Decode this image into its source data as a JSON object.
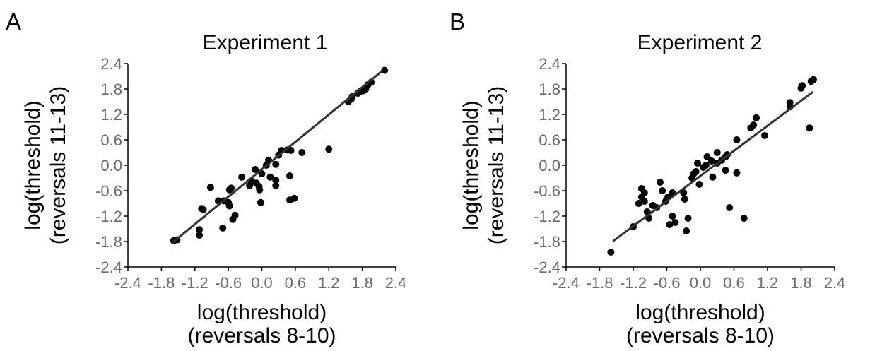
{
  "chart_data": [
    {
      "type": "scatter",
      "panel_letter": "A",
      "title": "Experiment 1",
      "xlabel_lines": [
        "log(threshold)",
        "(reversals 8-10)"
      ],
      "ylabel_lines": [
        "log(threshold)",
        "(reversals 11-13)"
      ],
      "xlim": [
        -2.4,
        2.4
      ],
      "ylim": [
        -2.4,
        2.4
      ],
      "xticks": [
        -2.4,
        -1.8,
        -1.2,
        -0.6,
        0.0,
        0.6,
        1.2,
        1.8,
        2.4
      ],
      "yticks": [
        -2.4,
        -1.8,
        -1.2,
        -0.6,
        0.0,
        0.6,
        1.2,
        1.8,
        2.4
      ],
      "xtick_labels": [
        "-2.4",
        "-1.8",
        "-1.2",
        "-0.6",
        "0.0",
        "0.6",
        "1.2",
        "1.8",
        "2.4"
      ],
      "ytick_labels": [
        "-2.4",
        "-1.8",
        "-1.2",
        "-0.6",
        "0.0",
        "0.6",
        "1.2",
        "1.8",
        "2.4"
      ],
      "grid": false,
      "fit_line": {
        "x": [
          -1.6,
          2.15
        ],
        "y": [
          -1.82,
          2.22
        ]
      },
      "points": [
        [
          -1.58,
          -1.78
        ],
        [
          -1.52,
          -1.76
        ],
        [
          -1.12,
          -1.65
        ],
        [
          -1.12,
          -1.52
        ],
        [
          -1.05,
          -1.05
        ],
        [
          -1.08,
          -1.02
        ],
        [
          -0.92,
          -0.52
        ],
        [
          -0.78,
          -0.84
        ],
        [
          -0.7,
          -1.48
        ],
        [
          -0.68,
          -0.84
        ],
        [
          -0.6,
          -0.88
        ],
        [
          -0.58,
          -0.96
        ],
        [
          -0.52,
          -1.28
        ],
        [
          -0.48,
          -1.18
        ],
        [
          -0.58,
          -0.58
        ],
        [
          -0.55,
          -0.54
        ],
        [
          -0.36,
          -0.28
        ],
        [
          -0.22,
          -0.48
        ],
        [
          -0.18,
          -0.38
        ],
        [
          -0.12,
          -0.1
        ],
        [
          -0.1,
          -0.42
        ],
        [
          -0.05,
          -0.5
        ],
        [
          -0.04,
          -0.58
        ],
        [
          -0.02,
          -0.88
        ],
        [
          0.0,
          -0.2
        ],
        [
          0.08,
          0.0
        ],
        [
          0.15,
          -0.28
        ],
        [
          0.12,
          0.12
        ],
        [
          0.25,
          -0.48
        ],
        [
          0.25,
          -0.35
        ],
        [
          0.25,
          0.02
        ],
        [
          0.3,
          0.24
        ],
        [
          0.35,
          0.35
        ],
        [
          0.45,
          0.36
        ],
        [
          0.5,
          -0.25
        ],
        [
          0.52,
          0.35
        ],
        [
          0.5,
          -0.82
        ],
        [
          0.58,
          -0.78
        ],
        [
          0.72,
          0.3
        ],
        [
          1.2,
          0.38
        ],
        [
          1.55,
          1.5
        ],
        [
          1.6,
          1.56
        ],
        [
          1.62,
          1.62
        ],
        [
          1.72,
          1.7
        ],
        [
          1.76,
          1.74
        ],
        [
          1.82,
          1.76
        ],
        [
          1.86,
          1.8
        ],
        [
          1.9,
          1.9
        ],
        [
          1.96,
          1.96
        ],
        [
          2.2,
          2.24
        ]
      ]
    },
    {
      "type": "scatter",
      "panel_letter": "B",
      "title": "Experiment 2",
      "xlabel_lines": [
        "log(threshold)",
        "(reversals 8-10)"
      ],
      "ylabel_lines": [
        "log(threshold)",
        "(reversals 11-13)"
      ],
      "xlim": [
        -2.4,
        2.4
      ],
      "ylim": [
        -2.4,
        2.4
      ],
      "xticks": [
        -2.4,
        -1.8,
        -1.2,
        -0.6,
        0.0,
        0.6,
        1.2,
        1.8,
        2.4
      ],
      "yticks": [
        -2.4,
        -1.8,
        -1.2,
        -0.6,
        0.0,
        0.6,
        1.2,
        1.8,
        2.4
      ],
      "xtick_labels": [
        "-2.4",
        "-1.8",
        "-1.2",
        "-0.6",
        "0.0",
        "0.6",
        "1.2",
        "1.8",
        "2.4"
      ],
      "ytick_labels": [
        "-2.4",
        "-1.8",
        "-1.2",
        "-0.6",
        "0.0",
        "0.6",
        "1.2",
        "1.8",
        "2.4"
      ],
      "grid": false,
      "fit_line": {
        "x": [
          -1.55,
          2.0
        ],
        "y": [
          -1.78,
          1.72
        ]
      },
      "points": [
        [
          -1.6,
          -2.05
        ],
        [
          -1.2,
          -1.45
        ],
        [
          -1.1,
          -0.9
        ],
        [
          -1.05,
          -0.55
        ],
        [
          -1.0,
          -0.65
        ],
        [
          -1.05,
          -0.75
        ],
        [
          -1.0,
          -0.85
        ],
        [
          -0.95,
          -1.1
        ],
        [
          -0.92,
          -1.25
        ],
        [
          -0.85,
          -0.95
        ],
        [
          -0.78,
          -1.0
        ],
        [
          -0.72,
          -0.4
        ],
        [
          -0.68,
          -0.6
        ],
        [
          -0.62,
          -0.85
        ],
        [
          -0.58,
          -0.75
        ],
        [
          -0.55,
          -1.4
        ],
        [
          -0.5,
          -1.2
        ],
        [
          -0.5,
          -0.65
        ],
        [
          -0.45,
          -1.35
        ],
        [
          -0.3,
          -0.65
        ],
        [
          -0.28,
          -0.8
        ],
        [
          -0.25,
          -1.55
        ],
        [
          -0.22,
          -1.25
        ],
        [
          -0.15,
          -0.3
        ],
        [
          -0.12,
          -0.2
        ],
        [
          -0.08,
          -0.15
        ],
        [
          -0.05,
          0.05
        ],
        [
          -0.02,
          -0.45
        ],
        [
          0.05,
          -0.05
        ],
        [
          0.1,
          0.0
        ],
        [
          0.12,
          0.2
        ],
        [
          0.2,
          0.1
        ],
        [
          0.22,
          -0.28
        ],
        [
          0.3,
          0.05
        ],
        [
          0.3,
          0.3
        ],
        [
          0.38,
          0.12
        ],
        [
          0.45,
          0.2
        ],
        [
          0.48,
          0.25
        ],
        [
          0.45,
          -0.12
        ],
        [
          0.52,
          -1.0
        ],
        [
          0.65,
          0.6
        ],
        [
          0.65,
          -0.18
        ],
        [
          0.78,
          -1.25
        ],
        [
          0.9,
          0.88
        ],
        [
          0.95,
          0.95
        ],
        [
          1.0,
          1.12
        ],
        [
          1.15,
          0.7
        ],
        [
          1.6,
          1.38
        ],
        [
          1.6,
          1.48
        ],
        [
          1.8,
          1.82
        ],
        [
          1.82,
          1.88
        ],
        [
          1.95,
          0.88
        ],
        [
          1.98,
          1.98
        ],
        [
          2.02,
          2.02
        ]
      ]
    }
  ]
}
